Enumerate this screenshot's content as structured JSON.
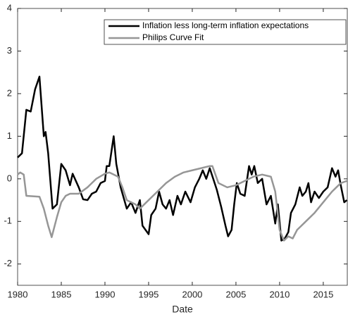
{
  "chart_data": {
    "type": "line",
    "xlabel": "Date",
    "xlim": [
      1980,
      2017.75
    ],
    "xticks": [
      1980,
      1985,
      1990,
      1995,
      2000,
      2005,
      2010,
      2015
    ],
    "ylim": [
      -2.5,
      4
    ],
    "yticks": [
      -2,
      -1,
      0,
      1,
      2,
      3,
      4
    ],
    "legend": "upper right",
    "series": [
      {
        "name": "Inflation less long-term inflation expectations",
        "color": "#000000",
        "x": [
          1980,
          1980.5,
          1981,
          1981.5,
          1982,
          1982.5,
          1983,
          1983.2,
          1983.5,
          1984,
          1984.5,
          1985,
          1985.5,
          1986,
          1986.3,
          1987,
          1987.5,
          1988,
          1988.5,
          1989,
          1989.5,
          1990,
          1990.2,
          1990.5,
          1991,
          1991.3,
          1991.8,
          1992.5,
          1993,
          1993.5,
          1994,
          1994.3,
          1995,
          1995.3,
          1995.8,
          1996.2,
          1996.6,
          1997,
          1997.4,
          1997.8,
          1998.3,
          1998.7,
          1999.2,
          1999.8,
          2000.3,
          2000.8,
          2001.2,
          2001.6,
          2002,
          2002.4,
          2002.8,
          2003.3,
          2003.8,
          2004.1,
          2004.5,
          2004.8,
          2005.1,
          2005.5,
          2006,
          2006.5,
          2006.8,
          2007.1,
          2007.5,
          2008,
          2008.5,
          2009,
          2009.5,
          2009.8,
          2010.2,
          2010.6,
          2011,
          2011.3,
          2011.8,
          2012.3,
          2012.6,
          2013,
          2013.3,
          2013.6,
          2014,
          2014.5,
          2015,
          2015.5,
          2016,
          2016.4,
          2016.7,
          2017,
          2017.4,
          2017.7
        ],
        "values": [
          0.5,
          0.6,
          1.62,
          1.58,
          2.1,
          2.4,
          1.0,
          1.1,
          0.6,
          -0.7,
          -0.6,
          0.35,
          0.2,
          -0.15,
          0.12,
          -0.2,
          -0.48,
          -0.5,
          -0.35,
          -0.3,
          -0.1,
          -0.05,
          0.3,
          0.3,
          1.0,
          0.35,
          -0.2,
          -0.7,
          -0.55,
          -0.8,
          -0.5,
          -1.1,
          -1.3,
          -0.85,
          -0.7,
          -0.3,
          -0.6,
          -0.7,
          -0.5,
          -0.85,
          -0.4,
          -0.6,
          -0.3,
          -0.55,
          -0.2,
          0.0,
          0.2,
          0.0,
          0.25,
          0.0,
          -0.25,
          -0.65,
          -1.1,
          -1.35,
          -1.2,
          -0.6,
          -0.1,
          -0.35,
          -0.4,
          0.3,
          0.1,
          0.3,
          -0.1,
          0.0,
          -0.6,
          -0.4,
          -1.05,
          -0.6,
          -1.45,
          -1.4,
          -1.25,
          -0.8,
          -0.6,
          -0.2,
          -0.4,
          -0.3,
          -0.1,
          -0.55,
          -0.3,
          -0.45,
          -0.3,
          -0.2,
          0.25,
          0.05,
          0.2,
          -0.15,
          -0.55,
          -0.5
        ]
      },
      {
        "name": "Philips Curve Fit",
        "color": "#969696",
        "x": [
          1980,
          1980.3,
          1980.7,
          1981,
          1982.5,
          1983,
          1983.5,
          1983.9,
          1984.5,
          1985,
          1985.5,
          1986,
          1987,
          1988,
          1989,
          1990,
          1990.5,
          1991,
          1991.5,
          1992,
          1992.5,
          1993,
          1993.5,
          1994,
          1995,
          1996,
          1997,
          1998,
          1999,
          2000,
          2001,
          2002,
          2002.3,
          2003,
          2004,
          2005,
          2006,
          2007,
          2008,
          2009,
          2009.5,
          2010,
          2010.5,
          2011,
          2011.5,
          2012,
          2012.5,
          2013,
          2014,
          2015,
          2016,
          2016.5,
          2017,
          2017.7
        ],
        "values": [
          0.1,
          0.15,
          0.1,
          -0.4,
          -0.42,
          -0.7,
          -1.1,
          -1.37,
          -0.9,
          -0.55,
          -0.4,
          -0.35,
          -0.35,
          -0.2,
          0.0,
          0.12,
          0.15,
          0.1,
          0.05,
          -0.2,
          -0.5,
          -0.55,
          -0.6,
          -0.7,
          -0.5,
          -0.3,
          -0.1,
          0.05,
          0.15,
          0.2,
          0.25,
          0.3,
          0.3,
          -0.1,
          -0.2,
          -0.15,
          -0.05,
          0.05,
          0.1,
          0.05,
          -0.3,
          -1.2,
          -1.45,
          -1.35,
          -1.4,
          -1.2,
          -1.1,
          -1.0,
          -0.8,
          -0.55,
          -0.3,
          -0.2,
          -0.1,
          -0.05
        ]
      }
    ]
  }
}
